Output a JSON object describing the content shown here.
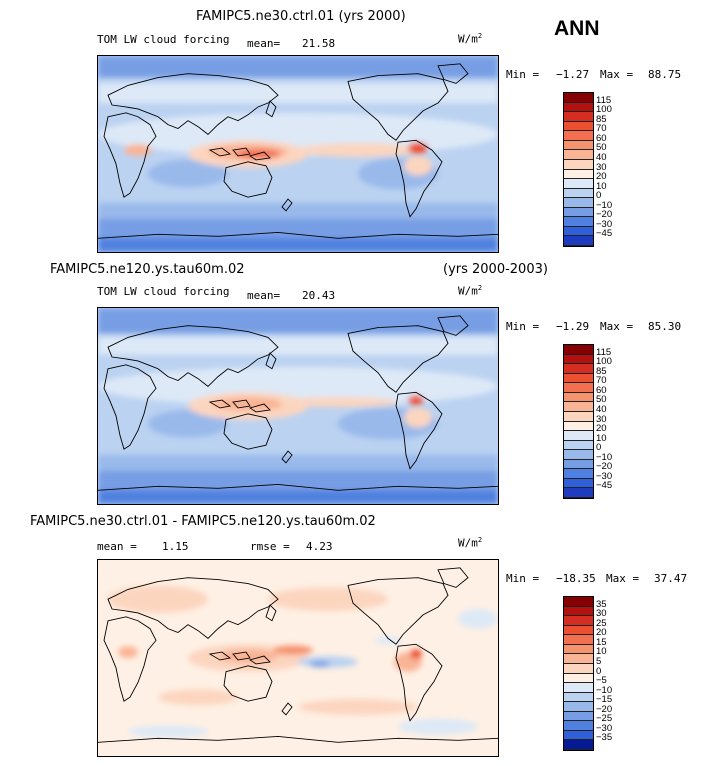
{
  "season": "ANN",
  "colors": {
    "full_scale": [
      "#840003",
      "#b2110f",
      "#d42e22",
      "#eb5131",
      "#f26f4f",
      "#f6936f",
      "#f9b495",
      "#fcd5bf",
      "#fef0e4",
      "#dde9f7",
      "#bbd2f1",
      "#99b9eb",
      "#779ee4",
      "#5080df",
      "#2f5fd9",
      "#1d3cc0",
      "#061a96",
      "#00006e"
    ],
    "diff_scale": [
      "#840003",
      "#b2110f",
      "#d42e22",
      "#eb5131",
      "#f26f4f",
      "#f6936f",
      "#f9b495",
      "#fcd5bf",
      "#fef0e4",
      "#dde9f7",
      "#bbd2f1",
      "#99b9eb",
      "#779ee4",
      "#5080df",
      "#2f5fd9",
      "#061a96",
      "#00006e"
    ]
  },
  "panel1": {
    "title": "FAMIPC5.ne30.ctrl.01 (yrs 2000)",
    "variable": "TOM LW cloud forcing",
    "mean_label": "mean=",
    "mean_value": "21.58",
    "units": "W/m",
    "units_exp": "2",
    "min_label": "Min =",
    "min_value": "−1.27",
    "max_label": "Max =",
    "max_value": "88.75",
    "ticks": [
      "115",
      "100",
      "85",
      "70",
      "60",
      "50",
      "40",
      "30",
      "20",
      "10",
      "0",
      "−10",
      "−20",
      "−30",
      "−45"
    ]
  },
  "panel2": {
    "title": "FAMIPC5.ne120.ys.tau60m.02",
    "years": "(yrs 2000-2003)",
    "variable": "TOM LW cloud forcing",
    "mean_label": "mean=",
    "mean_value": "20.43",
    "units": "W/m",
    "units_exp": "2",
    "min_label": "Min =",
    "min_value": "−1.29",
    "max_label": "Max =",
    "max_value": "85.30",
    "ticks": [
      "115",
      "100",
      "85",
      "70",
      "60",
      "50",
      "40",
      "30",
      "20",
      "10",
      "0",
      "−10",
      "−20",
      "−30",
      "−45"
    ]
  },
  "panel3": {
    "title": "FAMIPC5.ne30.ctrl.01 - FAMIPC5.ne120.ys.tau60m.02",
    "mean_label": "mean =",
    "mean_value": "1.15",
    "rmse_label": "rmse =",
    "rmse_value": "4.23",
    "units": "W/m",
    "units_exp": "2",
    "min_label": "Min =",
    "min_value": "−18.35",
    "max_label": "Max =",
    "max_value": "37.47",
    "ticks": [
      "35",
      "30",
      "25",
      "20",
      "15",
      "10",
      "5",
      "0",
      "−5",
      "−10",
      "−15",
      "−20",
      "−25",
      "−30",
      "−35"
    ]
  },
  "chart_data": [
    {
      "type": "heatmap",
      "title": "FAMIPC5.ne30.ctrl.01 (yrs 2000)",
      "subtitle": "TOM LW cloud forcing",
      "units": "W/m2",
      "mean": 21.58,
      "min": -1.27,
      "max": 88.75,
      "contour_levels": [
        -45,
        -30,
        -20,
        -10,
        0,
        10,
        20,
        30,
        40,
        50,
        60,
        70,
        85,
        100,
        115
      ]
    },
    {
      "type": "heatmap",
      "title": "FAMIPC5.ne120.ys.tau60m.02",
      "subtitle": "TOM LW cloud forcing",
      "years": "(yrs 2000-2003)",
      "units": "W/m2",
      "mean": 20.43,
      "min": -1.29,
      "max": 85.3,
      "contour_levels": [
        -45,
        -30,
        -20,
        -10,
        0,
        10,
        20,
        30,
        40,
        50,
        60,
        70,
        85,
        100,
        115
      ]
    },
    {
      "type": "heatmap",
      "title": "FAMIPC5.ne30.ctrl.01 - FAMIPC5.ne120.ys.tau60m.02",
      "units": "W/m2",
      "mean": 1.15,
      "rmse": 4.23,
      "min": -18.35,
      "max": 37.47,
      "contour_levels": [
        -35,
        -30,
        -25,
        -20,
        -15,
        -10,
        -5,
        0,
        5,
        10,
        15,
        20,
        25,
        30,
        35
      ]
    }
  ]
}
